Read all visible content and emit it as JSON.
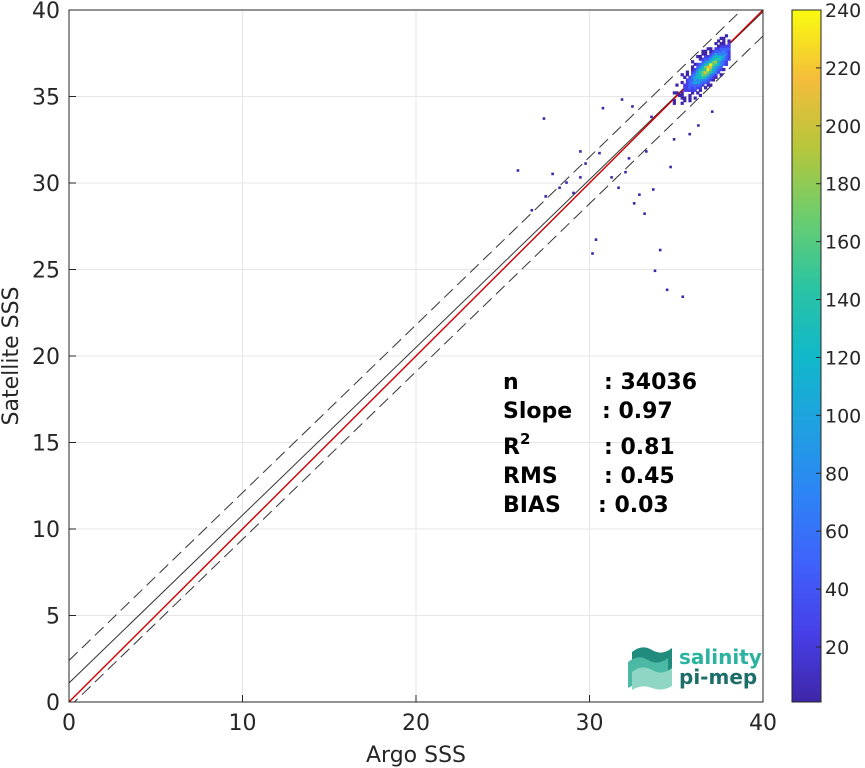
{
  "chart_data": {
    "type": "scatter",
    "subtype": "2d-density-scatter",
    "xlabel": "Argo SSS",
    "ylabel": "Satellite SSS",
    "xlim": [
      0,
      40
    ],
    "ylim": [
      0,
      40
    ],
    "xticks": [
      "0",
      "10",
      "20",
      "30",
      "40"
    ],
    "yticks": [
      "0",
      "5",
      "10",
      "15",
      "20",
      "25",
      "30",
      "35",
      "40"
    ],
    "grid": true,
    "colorbar": {
      "ticks": [
        "20",
        "40",
        "60",
        "80",
        "100",
        "120",
        "140",
        "160",
        "180",
        "200",
        "220",
        "240"
      ],
      "range": [
        1,
        240
      ],
      "colormap": "parula"
    },
    "reference_lines": {
      "one_to_one": {
        "slope": 1,
        "intercept": 0,
        "color": "#cc0000"
      },
      "regression": {
        "slope": 0.97,
        "intercept": 1.1,
        "color": "#333333"
      },
      "upper_bound": {
        "slope": 0.97,
        "intercept": 2.4,
        "style": "dashed",
        "color": "#333333"
      },
      "lower_bound": {
        "slope": 0.97,
        "intercept": -0.3,
        "style": "dashed",
        "color": "#333333"
      }
    },
    "density_core": {
      "x_range": [
        33,
        38
      ],
      "y_range": [
        32,
        39.5
      ],
      "peak": [
        36.8,
        36.6
      ]
    },
    "outliers": [
      [
        25.8,
        30.8
      ],
      [
        26.6,
        28.5
      ],
      [
        27.4,
        29.3
      ],
      [
        27.8,
        30.6
      ],
      [
        28.2,
        29.8
      ],
      [
        28.6,
        30.1
      ],
      [
        29.0,
        29.5
      ],
      [
        29.4,
        30.4
      ],
      [
        29.7,
        31.2
      ],
      [
        30.1,
        26.0
      ],
      [
        30.3,
        26.8
      ],
      [
        31.2,
        30.4
      ],
      [
        31.6,
        29.8
      ],
      [
        32.0,
        30.7
      ],
      [
        32.5,
        28.9
      ],
      [
        32.8,
        29.4
      ],
      [
        33.1,
        28.3
      ],
      [
        33.6,
        29.7
      ],
      [
        34.0,
        26.2
      ],
      [
        33.7,
        25.0
      ],
      [
        34.4,
        23.9
      ],
      [
        35.3,
        23.5
      ],
      [
        34.6,
        31.0
      ],
      [
        33.5,
        33.9
      ],
      [
        30.7,
        34.4
      ],
      [
        31.8,
        34.9
      ],
      [
        32.4,
        34.5
      ],
      [
        27.3,
        33.8
      ],
      [
        29.4,
        31.9
      ],
      [
        32.2,
        31.5
      ],
      [
        33.2,
        31.9
      ],
      [
        34.8,
        32.6
      ],
      [
        35.7,
        32.9
      ],
      [
        36.2,
        33.4
      ],
      [
        37.0,
        34.2
      ],
      [
        30.5,
        31.8
      ]
    ],
    "annotations": [
      {
        "label": "n",
        "value": ": 34036"
      },
      {
        "label": "Slope",
        "value": ": 0.97"
      },
      {
        "label": "R",
        "sup": "2",
        "value": ": 0.81"
      },
      {
        "label": "RMS",
        "value": ": 0.45"
      },
      {
        "label": "BIAS",
        "value": ": 0.03"
      }
    ]
  },
  "logo": {
    "line1": "salinity",
    "line2": "pi-mep",
    "color1": "#2bb3a0",
    "color2": "#1d6e6a"
  }
}
